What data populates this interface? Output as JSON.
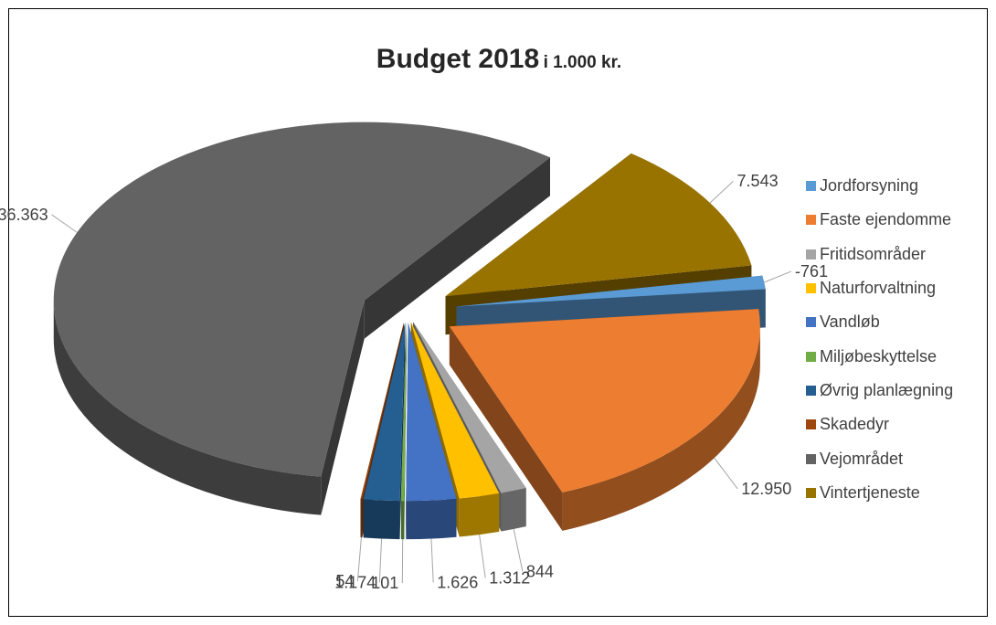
{
  "chart_data": {
    "type": "pie",
    "title": "Budget 2018",
    "subtitle": "i 1.000 kr.",
    "categories": [
      "Jordforsyning",
      "Faste ejendomme",
      "Fritidsområder",
      "Naturforvaltning",
      "Vandløb",
      "Miljøbeskyttelse",
      "Øvrig planlægning",
      "Skadedyr",
      "Vejområdet",
      "Vintertjeneste"
    ],
    "values": [
      -761,
      12950,
      844,
      1312,
      1626,
      101,
      1174,
      54,
      36363,
      7543
    ],
    "value_labels": [
      "-761",
      "12.950",
      "844",
      "1.312",
      "1.626",
      "101",
      "1.174",
      "54",
      "36.363",
      "7.543"
    ],
    "colors": [
      "#5b9bd5",
      "#ed7d31",
      "#a5a5a5",
      "#ffc000",
      "#4472c4",
      "#70ad47",
      "#255e91",
      "#9e480e",
      "#636363",
      "#997300"
    ],
    "legend_position": "right",
    "style": "3d-exploded"
  }
}
